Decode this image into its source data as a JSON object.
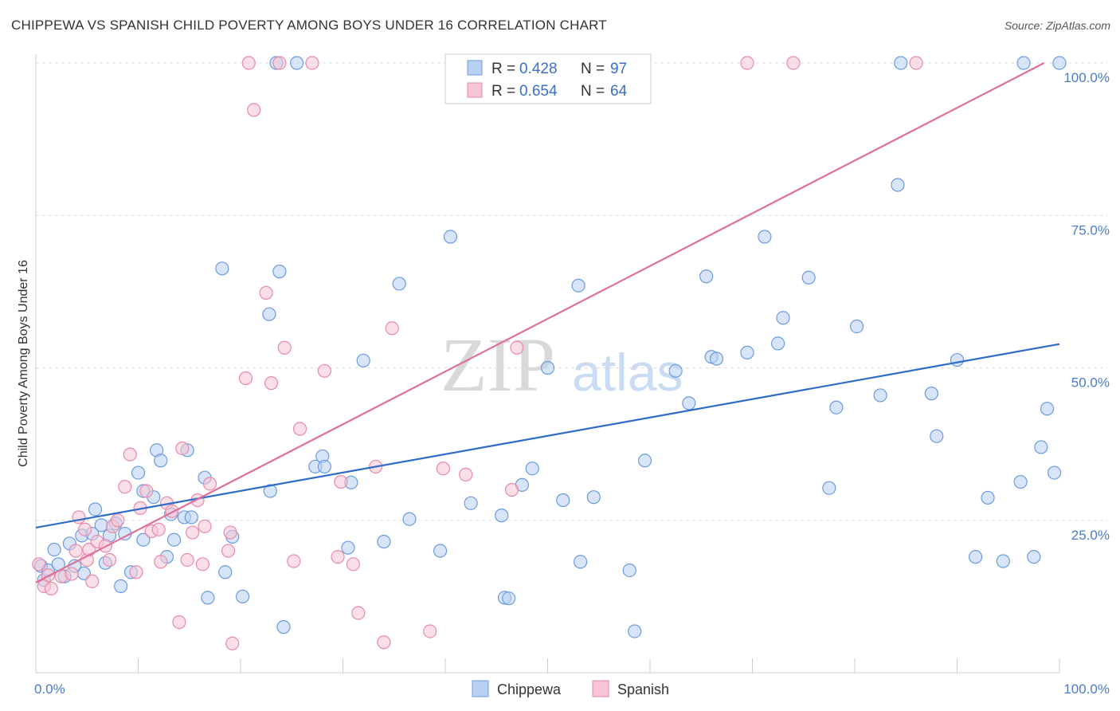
{
  "header": {
    "title": "CHIPPEWA VS SPANISH CHILD POVERTY AMONG BOYS UNDER 16 CORRELATION CHART",
    "source": "Source: ZipAtlas.com"
  },
  "watermark": {
    "zip": "ZIP",
    "atlas": "atlas"
  },
  "chart_data": {
    "type": "scatter",
    "ylabel": "Child Poverty Among Boys Under 16",
    "xlim": [
      0,
      100
    ],
    "ylim": [
      0,
      100
    ],
    "x_tick_labels": [
      "0.0%",
      "100.0%"
    ],
    "y_ticks": [
      {
        "value": 25,
        "label": "25.0%"
      },
      {
        "value": 50,
        "label": "50.0%"
      },
      {
        "value": 75,
        "label": "75.0%"
      },
      {
        "value": 100,
        "label": "100.0%"
      }
    ],
    "grid": true,
    "legend_position": "top-center",
    "legend": [
      {
        "series": "Chippewa",
        "r_label": "R =",
        "r_value": "0.428",
        "n_label": "N =",
        "n_value": "97"
      },
      {
        "series": "Spanish",
        "r_label": "R =",
        "r_value": "0.654",
        "n_label": "N =",
        "n_value": "64"
      }
    ],
    "series": [
      {
        "name": "Chippewa",
        "color": "#6a9be0",
        "fill": "#b8d0f2",
        "trend": {
          "x": [
            0,
            100
          ],
          "y": [
            23.8,
            53.9
          ]
        },
        "points": [
          [
            0.5,
            17.5
          ],
          [
            0.8,
            15.2
          ],
          [
            1.2,
            16.8
          ],
          [
            1.8,
            20.2
          ],
          [
            2.2,
            17.8
          ],
          [
            2.8,
            15.8
          ],
          [
            3.3,
            21.2
          ],
          [
            3.8,
            17.5
          ],
          [
            4.5,
            22.5
          ],
          [
            4.7,
            16.3
          ],
          [
            5.5,
            22.8
          ],
          [
            5.8,
            26.8
          ],
          [
            6.4,
            24.2
          ],
          [
            6.8,
            18.0
          ],
          [
            7.2,
            22.5
          ],
          [
            7.8,
            24.5
          ],
          [
            8.3,
            14.2
          ],
          [
            8.7,
            22.8
          ],
          [
            9.3,
            16.5
          ],
          [
            10.0,
            32.8
          ],
          [
            10.5,
            29.8
          ],
          [
            10.5,
            21.8
          ],
          [
            11.5,
            28.8
          ],
          [
            11.8,
            36.5
          ],
          [
            12.2,
            34.8
          ],
          [
            12.8,
            19.0
          ],
          [
            13.2,
            26.0
          ],
          [
            13.5,
            21.8
          ],
          [
            14.5,
            25.5
          ],
          [
            14.8,
            36.5
          ],
          [
            15.2,
            25.5
          ],
          [
            16.5,
            32.0
          ],
          [
            16.8,
            12.3
          ],
          [
            18.2,
            66.3
          ],
          [
            18.5,
            16.5
          ],
          [
            19.2,
            22.3
          ],
          [
            20.2,
            12.5
          ],
          [
            22.8,
            58.8
          ],
          [
            22.9,
            29.8
          ],
          [
            23.5,
            100
          ],
          [
            23.8,
            65.8
          ],
          [
            24.2,
            7.5
          ],
          [
            25.5,
            100
          ],
          [
            27.3,
            33.8
          ],
          [
            28.0,
            35.5
          ],
          [
            28.2,
            33.8
          ],
          [
            30.5,
            20.5
          ],
          [
            30.8,
            31.2
          ],
          [
            32.0,
            51.2
          ],
          [
            34.0,
            21.5
          ],
          [
            35.5,
            63.8
          ],
          [
            36.5,
            25.2
          ],
          [
            39.5,
            20.0
          ],
          [
            40.5,
            71.5
          ],
          [
            42.5,
            27.8
          ],
          [
            45.5,
            25.8
          ],
          [
            45.8,
            12.3
          ],
          [
            46.2,
            12.2
          ],
          [
            47.5,
            30.8
          ],
          [
            48.5,
            33.5
          ],
          [
            50.0,
            50.0
          ],
          [
            51.5,
            28.3
          ],
          [
            53.0,
            63.5
          ],
          [
            53.2,
            18.2
          ],
          [
            54.5,
            28.8
          ],
          [
            58.0,
            16.8
          ],
          [
            58.5,
            6.8
          ],
          [
            59.5,
            34.8
          ],
          [
            62.5,
            49.5
          ],
          [
            63.8,
            44.2
          ],
          [
            65.5,
            65.0
          ],
          [
            66.0,
            51.8
          ],
          [
            66.5,
            51.5
          ],
          [
            69.5,
            52.5
          ],
          [
            71.2,
            71.5
          ],
          [
            72.5,
            54.0
          ],
          [
            73.0,
            58.2
          ],
          [
            75.5,
            64.8
          ],
          [
            77.5,
            30.3
          ],
          [
            78.2,
            43.5
          ],
          [
            80.2,
            56.8
          ],
          [
            82.5,
            45.5
          ],
          [
            84.2,
            80.0
          ],
          [
            84.5,
            100
          ],
          [
            87.5,
            45.8
          ],
          [
            88.0,
            38.8
          ],
          [
            90.0,
            51.3
          ],
          [
            91.8,
            19.0
          ],
          [
            93.0,
            28.7
          ],
          [
            94.5,
            18.3
          ],
          [
            96.2,
            31.3
          ],
          [
            96.5,
            100
          ],
          [
            97.5,
            19.0
          ],
          [
            98.2,
            37.0
          ],
          [
            98.8,
            43.3
          ],
          [
            100.0,
            100
          ],
          [
            99.5,
            32.8
          ]
        ]
      },
      {
        "name": "Spanish",
        "color": "#e88aa8",
        "fill": "#f6c4d4",
        "trend": {
          "x": [
            0,
            98.5
          ],
          "y": [
            14.8,
            100
          ]
        },
        "points": [
          [
            0.3,
            17.8
          ],
          [
            0.8,
            14.2
          ],
          [
            1.2,
            16.0
          ],
          [
            1.5,
            13.8
          ],
          [
            2.5,
            15.8
          ],
          [
            3.5,
            16.2
          ],
          [
            3.9,
            20.0
          ],
          [
            4.2,
            25.5
          ],
          [
            4.8,
            23.5
          ],
          [
            5.0,
            18.5
          ],
          [
            5.2,
            20.2
          ],
          [
            5.5,
            15.0
          ],
          [
            6.0,
            21.5
          ],
          [
            6.8,
            20.8
          ],
          [
            7.2,
            18.5
          ],
          [
            7.5,
            24.0
          ],
          [
            8.0,
            25.0
          ],
          [
            8.7,
            30.5
          ],
          [
            9.2,
            35.8
          ],
          [
            9.8,
            16.5
          ],
          [
            10.2,
            27.0
          ],
          [
            10.8,
            29.8
          ],
          [
            11.3,
            23.2
          ],
          [
            12.0,
            23.5
          ],
          [
            12.2,
            18.2
          ],
          [
            12.8,
            27.8
          ],
          [
            13.3,
            26.5
          ],
          [
            14.0,
            8.3
          ],
          [
            14.3,
            36.8
          ],
          [
            14.8,
            18.5
          ],
          [
            15.3,
            23.0
          ],
          [
            15.8,
            28.3
          ],
          [
            16.3,
            17.8
          ],
          [
            16.5,
            24.0
          ],
          [
            17.0,
            31.0
          ],
          [
            18.8,
            20.0
          ],
          [
            19.0,
            23.0
          ],
          [
            19.2,
            4.8
          ],
          [
            20.5,
            48.3
          ],
          [
            20.8,
            100
          ],
          [
            21.3,
            92.3
          ],
          [
            22.5,
            62.3
          ],
          [
            23.0,
            47.5
          ],
          [
            23.8,
            100
          ],
          [
            24.3,
            53.3
          ],
          [
            25.2,
            18.3
          ],
          [
            25.8,
            40.0
          ],
          [
            27.0,
            100
          ],
          [
            28.2,
            49.5
          ],
          [
            29.5,
            19.0
          ],
          [
            29.8,
            31.3
          ],
          [
            31.0,
            17.8
          ],
          [
            31.5,
            9.8
          ],
          [
            33.2,
            33.8
          ],
          [
            34.0,
            5.0
          ],
          [
            34.8,
            56.5
          ],
          [
            38.5,
            6.8
          ],
          [
            39.8,
            33.5
          ],
          [
            42.0,
            32.5
          ],
          [
            46.5,
            30.0
          ],
          [
            47.0,
            53.3
          ],
          [
            69.5,
            100
          ],
          [
            74.0,
            100
          ],
          [
            86.0,
            100
          ]
        ]
      }
    ]
  }
}
